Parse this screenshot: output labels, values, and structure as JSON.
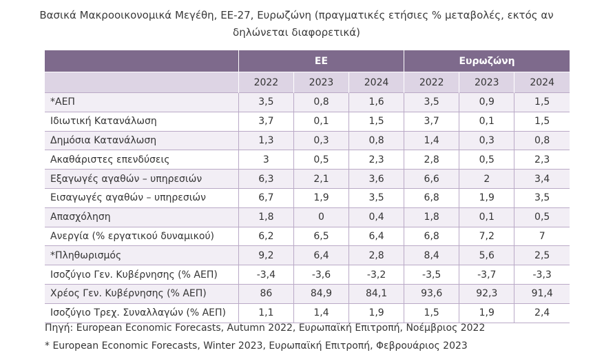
{
  "title_line1": "Βασικά Μακροοικονομικά Μεγέθη, ΕΕ-27, Ευρωζώνη (πραγματικές ετήσιες % μεταβολές, εκτός αν",
  "title_line2": "δηλώνεται διαφορετικά)",
  "groups": [
    "ΕΕ",
    "Ευρωζώνη"
  ],
  "years": [
    "2022",
    "2023",
    "2024",
    "2022",
    "2023",
    "2024"
  ],
  "rows": [
    {
      "label": "*ΑΕΠ",
      "values": [
        "3,5",
        "0,8",
        "1,6",
        "3,5",
        "0,9",
        "1,5"
      ]
    },
    {
      "label": "Ιδιωτική Κατανάλωση",
      "values": [
        "3,7",
        "0,1",
        "1,5",
        "3,7",
        "0,1",
        "1,5"
      ]
    },
    {
      "label": "Δημόσια Κατανάλωση",
      "values": [
        "1,3",
        "0,3",
        "0,8",
        "1,4",
        "0,3",
        "0,8"
      ]
    },
    {
      "label": "Ακαθάριστες επενδύσεις",
      "values": [
        "3",
        "0,5",
        "2,3",
        "2,8",
        "0,5",
        "2,3"
      ]
    },
    {
      "label": "Εξαγωγές αγαθών – υπηρεσιών",
      "values": [
        "6,3",
        "2,1",
        "3,6",
        "6,6",
        "2",
        "3,4"
      ]
    },
    {
      "label": "Εισαγωγές αγαθών – υπηρεσιών",
      "values": [
        "6,7",
        "1,9",
        "3,5",
        "6,8",
        "1,9",
        "3,5"
      ]
    },
    {
      "label": "Απασχόληση",
      "values": [
        "1,8",
        "0",
        "0,4",
        "1,8",
        "0,1",
        "0,5"
      ]
    },
    {
      "label": "Ανεργία (% εργατικού δυναμικού)",
      "values": [
        "6,2",
        "6,5",
        "6,4",
        "6,8",
        "7,2",
        "7"
      ]
    },
    {
      "label": "*Πληθωρισμός",
      "values": [
        "9,2",
        "6,4",
        "2,8",
        "8,4",
        "5,6",
        "2,5"
      ]
    },
    {
      "label": "Ισοζύγιο Γεν. Κυβέρνησης (% ΑΕΠ)",
      "values": [
        "-3,4",
        "-3,6",
        "-3,2",
        "-3,5",
        "-3,7",
        "-3,3"
      ]
    },
    {
      "label": "Χρέος Γεν. Κυβέρνησης (% ΑΕΠ)",
      "values": [
        "86",
        "84,9",
        "84,1",
        "93,6",
        "92,3",
        "91,4"
      ]
    },
    {
      "label": "Ισοζύγιο Τρεχ. Συναλλαγών (% ΑΕΠ)",
      "values": [
        "1,1",
        "1,4",
        "1,9",
        "1,5",
        "1,9",
        "2,4"
      ]
    }
  ],
  "source_note": "Πηγή: European Economic Forecasts, Autumn 2022, Ευρωπαϊκή Επιτροπή, Νοέμβριος 2022",
  "footnote": "* European Economic Forecasts, Winter 2023, Ευρωπαϊκή Επιτροπή, Φεβρουάριος 2023",
  "colors": {
    "header": "#7e6a8c",
    "subheader": "#ddd4e4",
    "stripe": "#f2eef5",
    "grid": "#b9a9c6"
  }
}
